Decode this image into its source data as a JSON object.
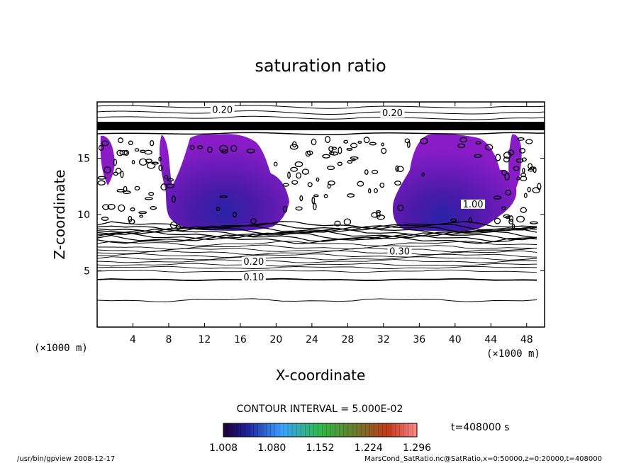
{
  "chart_data": {
    "type": "contour",
    "title": "saturation ratio",
    "xlabel": "X-coordinate",
    "ylabel": "Z-coordinate",
    "x_unit": "(×1000 m)",
    "y_unit": "(×1000 m)",
    "xlim": [
      0,
      50
    ],
    "ylim": [
      0,
      20
    ],
    "x_ticks": [
      "4",
      "8",
      "12",
      "16",
      "20",
      "24",
      "28",
      "32",
      "36",
      "40",
      "44",
      "48"
    ],
    "y_ticks": [
      "5",
      "10",
      "15"
    ],
    "contour_interval_text": "CONTOUR INTERVAL = 5.000E-02",
    "time_label": "t=408000 s",
    "colorbar_ticks": [
      "1.008",
      "1.080",
      "1.152",
      "1.224",
      "1.296"
    ],
    "colorbar_range": [
      1.008,
      1.296
    ],
    "contour_labels": [
      {
        "text": "0.20",
        "x": 14.0,
        "z": 19.1
      },
      {
        "text": "0.20",
        "x": 33.0,
        "z": 18.8
      },
      {
        "text": "1.00",
        "x": 42.0,
        "z": 10.7
      },
      {
        "text": "0.30",
        "x": 33.8,
        "z": 6.5
      },
      {
        "text": "0.20",
        "x": 17.5,
        "z": 5.6
      },
      {
        "text": "0.10",
        "x": 17.5,
        "z": 4.2
      }
    ],
    "footer_left": "/usr/bin/gpview   2008-12-17",
    "footer_right": "MarsCond_SatRatio.nc@SatRatio,x=0:50000,z=0:20000,t=408000"
  }
}
